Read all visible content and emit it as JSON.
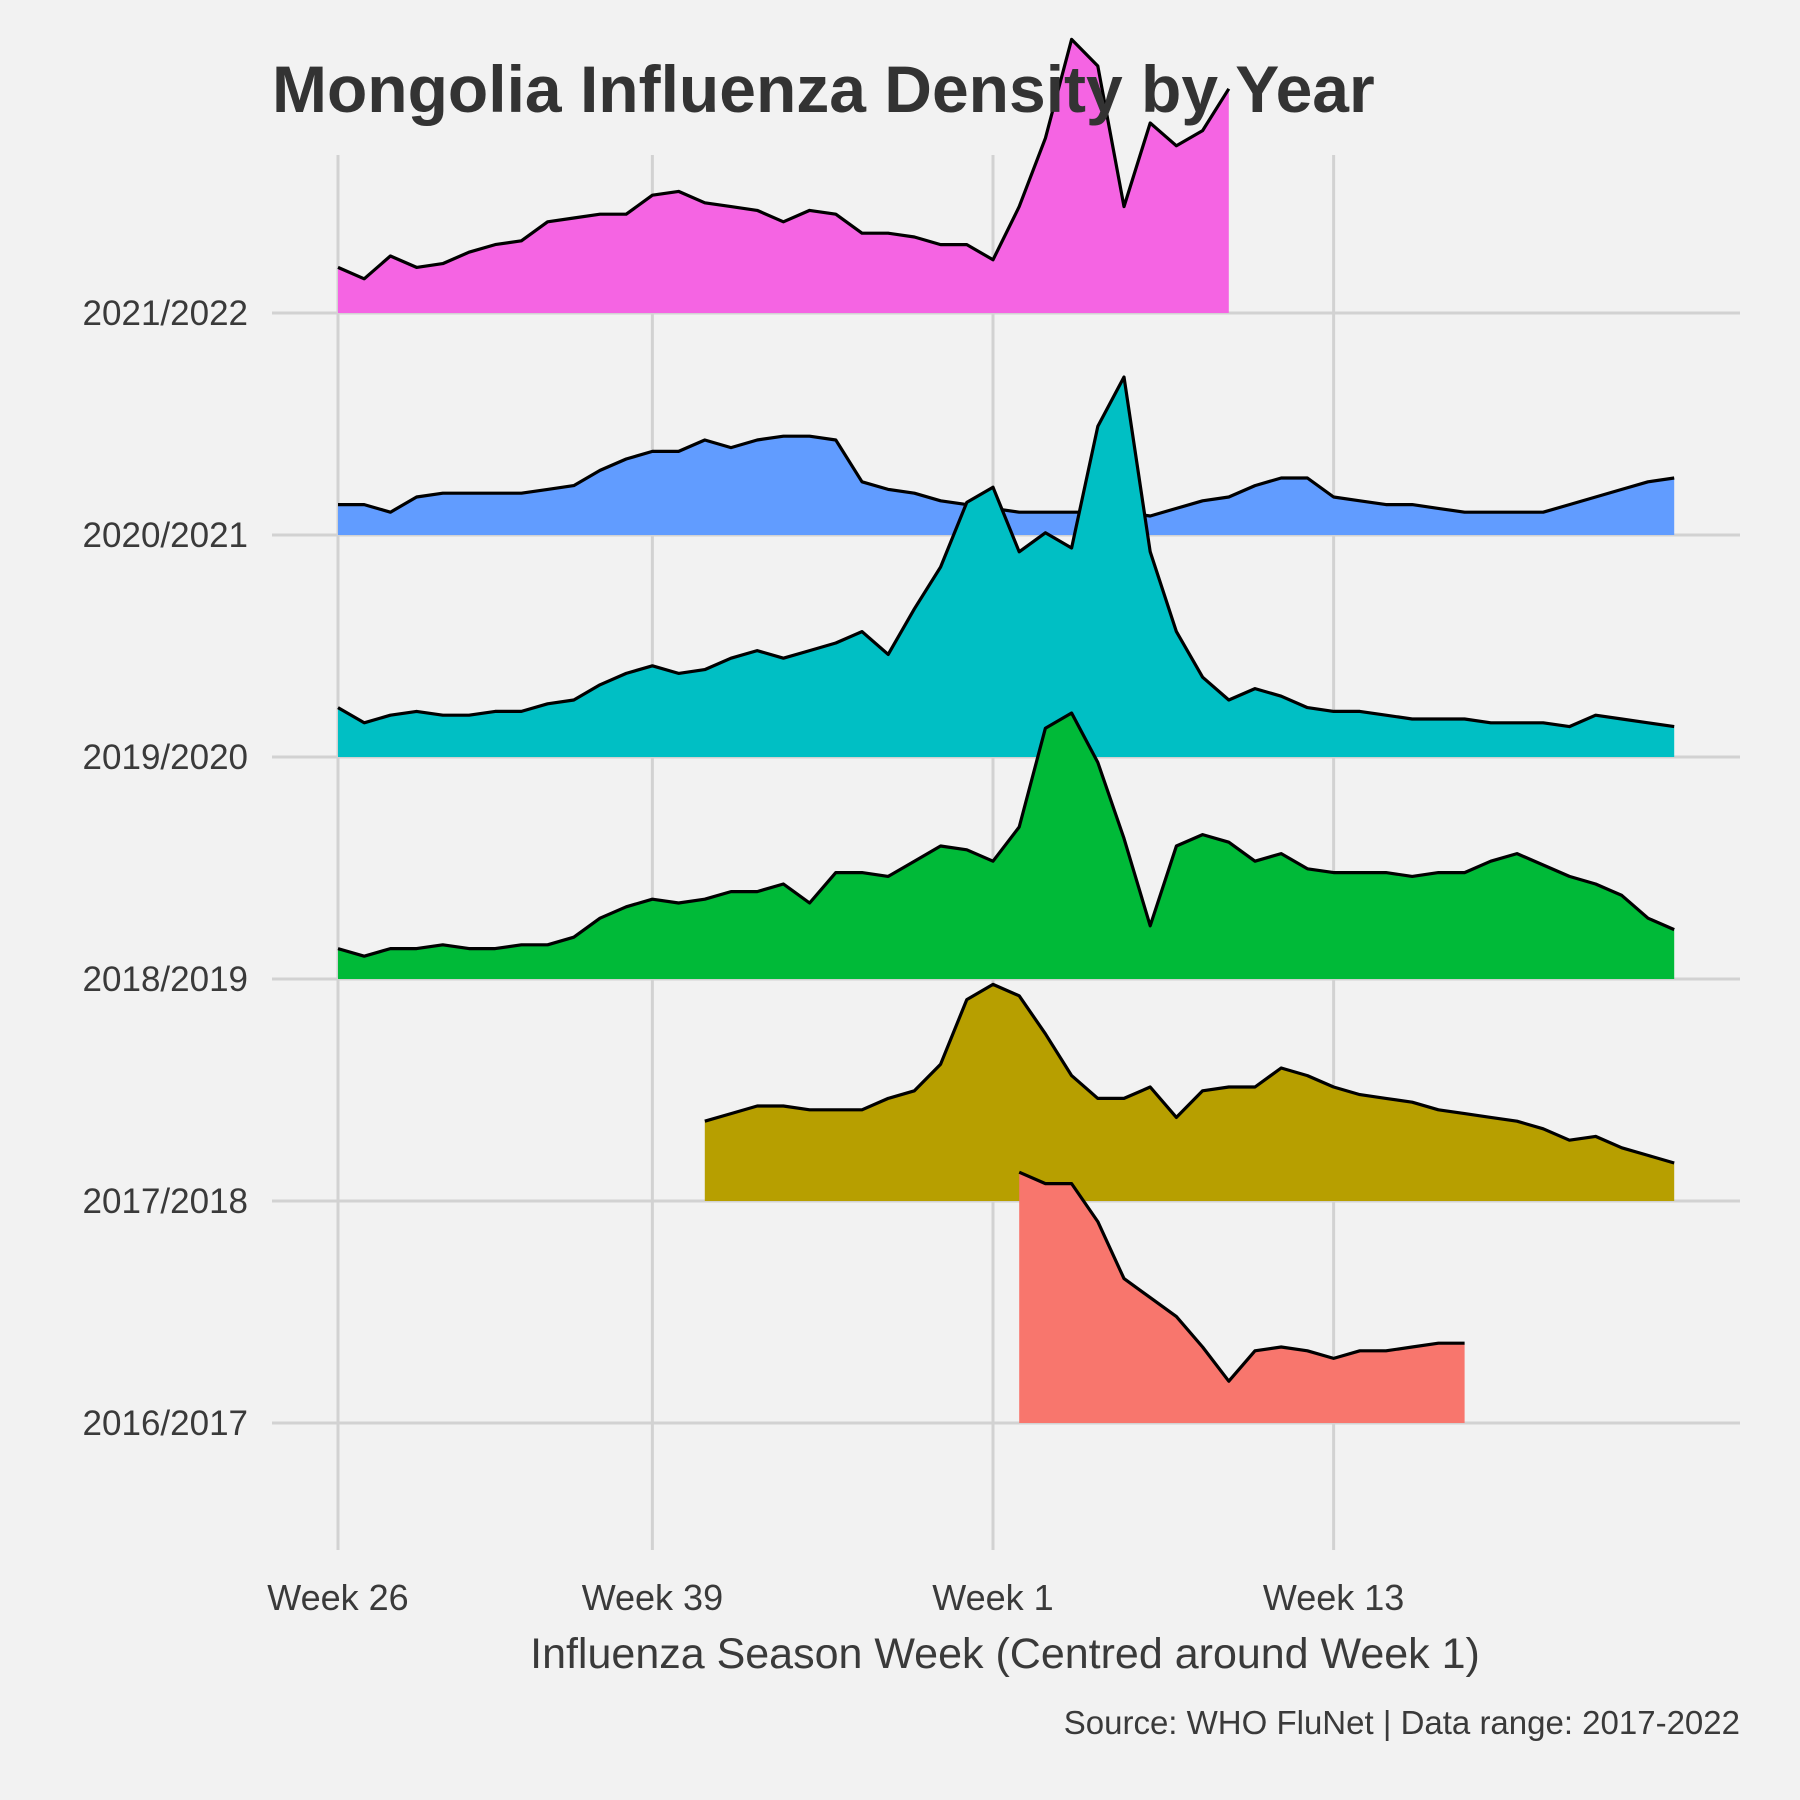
{
  "chart_data": {
    "type": "area",
    "subtype": "ridgeline",
    "title": "Mongolia Influenza Density by Year",
    "xlabel": "Influenza Season Week (Centred around Week 1)",
    "ylabel": "",
    "caption": "Source: WHO FluNet | Data range: 2017-2022",
    "x_ticks": [
      {
        "label": "Week 26",
        "index": 0
      },
      {
        "label": "Week 39",
        "index": 12
      },
      {
        "label": "Week 1",
        "index": 25
      },
      {
        "label": "Week 13",
        "index": 38
      }
    ],
    "x_range": [
      -3,
      54
    ],
    "y_categories": [
      "2016/2017",
      "2017/2018",
      "2018/2019",
      "2019/2020",
      "2020/2021",
      "2021/2022"
    ],
    "grid": true,
    "legend": "none",
    "series": [
      {
        "name": "2016/2017",
        "color": "#F8766D",
        "start_index": 26,
        "values": [
          0.66,
          0.63,
          0.63,
          0.53,
          0.38,
          0.33,
          0.28,
          0.2,
          0.11,
          0.19,
          0.2,
          0.19,
          0.17,
          0.19,
          0.19,
          0.2,
          0.21,
          0.21
        ]
      },
      {
        "name": "2017/2018",
        "color": "#B79F00",
        "start_index": 14,
        "values": [
          0.21,
          0.23,
          0.25,
          0.25,
          0.24,
          0.24,
          0.24,
          0.27,
          0.29,
          0.36,
          0.53,
          0.57,
          0.54,
          0.44,
          0.33,
          0.27,
          0.27,
          0.3,
          0.22,
          0.29,
          0.3,
          0.3,
          0.35,
          0.33,
          0.3,
          0.28,
          0.27,
          0.26,
          0.24,
          0.23,
          0.22,
          0.21,
          0.19,
          0.16,
          0.17,
          0.14,
          0.12,
          0.1
        ]
      },
      {
        "name": "2018/2019",
        "color": "#00BA38",
        "start_index": 0,
        "values": [
          0.08,
          0.06,
          0.08,
          0.08,
          0.09,
          0.08,
          0.08,
          0.09,
          0.09,
          0.11,
          0.16,
          0.19,
          0.21,
          0.2,
          0.21,
          0.23,
          0.23,
          0.25,
          0.2,
          0.28,
          0.28,
          0.27,
          0.31,
          0.35,
          0.34,
          0.31,
          0.4,
          0.66,
          0.7,
          0.57,
          0.37,
          0.14,
          0.35,
          0.38,
          0.36,
          0.31,
          0.33,
          0.29,
          0.28,
          0.28,
          0.28,
          0.27,
          0.28,
          0.28,
          0.31,
          0.33,
          0.3,
          0.27,
          0.25,
          0.22,
          0.16,
          0.13
        ]
      },
      {
        "name": "2019/2020",
        "color": "#00BFC4",
        "start_index": 0,
        "values": [
          0.13,
          0.09,
          0.11,
          0.12,
          0.11,
          0.11,
          0.12,
          0.12,
          0.14,
          0.15,
          0.19,
          0.22,
          0.24,
          0.22,
          0.23,
          0.26,
          0.28,
          0.26,
          0.28,
          0.3,
          0.33,
          0.27,
          0.39,
          0.5,
          0.67,
          0.71,
          0.54,
          0.59,
          0.55,
          0.87,
          1.0,
          0.54,
          0.33,
          0.21,
          0.15,
          0.18,
          0.16,
          0.13,
          0.12,
          0.12,
          0.11,
          0.1,
          0.1,
          0.1,
          0.09,
          0.09,
          0.09,
          0.08,
          0.11,
          0.1,
          0.09,
          0.08
        ]
      },
      {
        "name": "2020/2021",
        "color": "#619CFF",
        "start_index": 0,
        "values": [
          0.08,
          0.08,
          0.06,
          0.1,
          0.11,
          0.11,
          0.11,
          0.11,
          0.12,
          0.13,
          0.17,
          0.2,
          0.22,
          0.22,
          0.25,
          0.23,
          0.25,
          0.26,
          0.26,
          0.25,
          0.14,
          0.12,
          0.11,
          0.09,
          0.08,
          0.07,
          0.06,
          0.06,
          0.06,
          0.06,
          0.06,
          0.05,
          0.07,
          0.09,
          0.1,
          0.13,
          0.15,
          0.15,
          0.1,
          0.09,
          0.08,
          0.08,
          0.07,
          0.06,
          0.06,
          0.06,
          0.06,
          0.08,
          0.1,
          0.12,
          0.14,
          0.15
        ]
      },
      {
        "name": "2021/2022",
        "color": "#F564E3",
        "start_index": 0,
        "values": [
          0.12,
          0.09,
          0.15,
          0.12,
          0.13,
          0.16,
          0.18,
          0.19,
          0.24,
          0.25,
          0.26,
          0.26,
          0.31,
          0.32,
          0.29,
          0.28,
          0.27,
          0.24,
          0.27,
          0.26,
          0.21,
          0.21,
          0.2,
          0.18,
          0.18,
          0.14,
          0.28,
          0.46,
          0.72,
          0.65,
          0.28,
          0.5,
          0.44,
          0.48,
          0.59
        ]
      }
    ]
  }
}
